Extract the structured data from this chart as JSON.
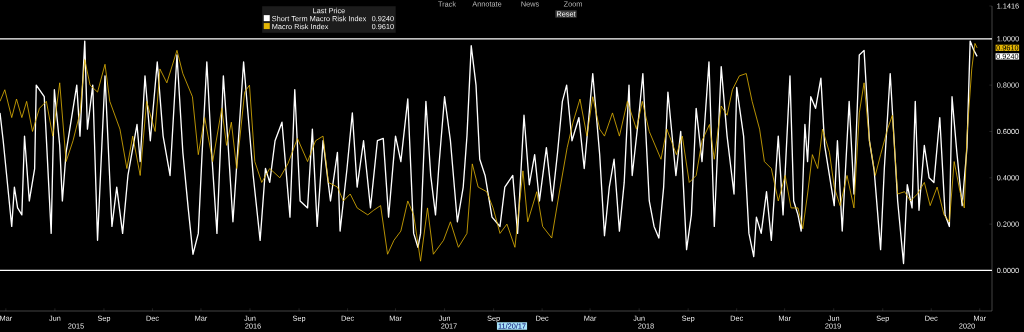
{
  "chart_data": {
    "type": "line",
    "legend_title": "Last Price",
    "legend": "top",
    "xlim": [
      "2015-02-18",
      "2020-03-24"
    ],
    "ylim": [
      -0.175,
      1.1416
    ],
    "xticks": [
      {
        "value": "2015-03-01",
        "label": "Mar"
      },
      {
        "value": "2015-06-01",
        "label": "Jun"
      },
      {
        "value": "2015-09-01",
        "label": "Sep"
      },
      {
        "value": "2015-12-01",
        "label": "Dec"
      },
      {
        "value": "2016-03-01",
        "label": "Mar"
      },
      {
        "value": "2016-06-01",
        "label": "Jun"
      },
      {
        "value": "2016-09-01",
        "label": "Sep"
      },
      {
        "value": "2016-12-01",
        "label": "Dec"
      },
      {
        "value": "2017-03-01",
        "label": "Mar"
      },
      {
        "value": "2017-06-01",
        "label": "Jun"
      },
      {
        "value": "2017-09-01",
        "label": "Sep"
      },
      {
        "value": "2017-12-01",
        "label": "Dec"
      },
      {
        "value": "2018-03-01",
        "label": "Mar"
      },
      {
        "value": "2018-06-01",
        "label": "Jun"
      },
      {
        "value": "2018-09-01",
        "label": "Sep"
      },
      {
        "value": "2018-12-01",
        "label": "Dec"
      },
      {
        "value": "2019-03-01",
        "label": "Mar"
      },
      {
        "value": "2019-06-01",
        "label": "Jun"
      },
      {
        "value": "2019-09-01",
        "label": "Sep"
      },
      {
        "value": "2019-12-01",
        "label": "Dec"
      },
      {
        "value": "2020-03-01",
        "label": "Mar"
      }
    ],
    "yticks": [
      {
        "value": 0,
        "label": "0.0000"
      },
      {
        "value": 0.2,
        "label": "0.2000"
      },
      {
        "value": 0.4,
        "label": "0.4000"
      },
      {
        "value": 0.6,
        "label": "0.6000"
      },
      {
        "value": 0.8,
        "label": "0.8000"
      },
      {
        "value": 1,
        "label": "1.0000"
      },
      {
        "value": 1.1416,
        "label": "1.1416"
      }
    ],
    "ref_lines": [
      {
        "axis": "y",
        "value": 1,
        "color": "#ffffff"
      },
      {
        "axis": "y",
        "value": 0,
        "color": "#ffffff"
      }
    ],
    "annotations": [
      "0.9240",
      "0.9610",
      "Track",
      "Annotate",
      "News",
      "Zoom",
      "Reset",
      "11/20/17",
      "2015",
      "2016",
      "2017",
      "2018",
      "2019",
      "2020"
    ],
    "series": [
      {
        "name": "Short Term Macro Risk Index",
        "color": "#ffffff",
        "x": [
          "2015-02-18",
          "2015-02-24",
          "2015-03-12",
          "2015-03-17",
          "2015-03-23",
          "2015-03-31",
          "2015-04-05",
          "2015-04-14",
          "2015-04-24",
          "2015-04-27",
          "2015-05-12",
          "2015-05-25",
          "2015-05-31",
          "2015-06-10",
          "2015-06-15",
          "2015-06-22",
          "2015-07-12",
          "2015-07-18",
          "2015-07-27",
          "2015-08-01",
          "2015-08-11",
          "2015-08-20",
          "2015-09-03",
          "2015-09-16",
          "2015-09-25",
          "2015-10-06",
          "2015-10-16",
          "2015-11-02",
          "2015-11-08",
          "2015-11-17",
          "2015-11-27",
          "2015-12-10",
          "2015-12-21",
          "2016-01-03",
          "2016-01-16",
          "2016-01-27",
          "2016-02-06",
          "2016-02-15",
          "2016-02-25",
          "2016-03-03",
          "2016-03-12",
          "2016-03-21",
          "2016-03-31",
          "2016-04-12",
          "2016-04-21",
          "2016-04-30",
          "2016-05-20",
          "2016-06-07",
          "2016-06-20",
          "2016-06-30",
          "2016-07-08",
          "2016-07-18",
          "2016-07-31",
          "2016-08-15",
          "2016-08-24",
          "2016-09-03",
          "2016-09-17",
          "2016-09-26",
          "2016-10-05",
          "2016-10-16",
          "2016-10-30",
          "2016-11-12",
          "2016-11-17",
          "2016-11-30",
          "2016-12-10",
          "2016-12-19",
          "2016-12-31",
          "2017-01-13",
          "2017-01-26",
          "2017-02-06",
          "2017-02-16",
          "2017-03-01",
          "2017-03-11",
          "2017-03-24",
          "2017-04-04",
          "2017-04-12",
          "2017-04-17",
          "2017-04-27",
          "2017-05-06",
          "2017-05-15",
          "2017-05-21",
          "2017-06-01",
          "2017-06-12",
          "2017-06-25",
          "2017-07-06",
          "2017-07-13",
          "2017-07-21",
          "2017-07-30",
          "2017-08-06",
          "2017-08-16",
          "2017-08-29",
          "2017-09-13",
          "2017-09-22",
          "2017-10-07",
          "2017-10-16",
          "2017-10-28",
          "2017-11-07",
          "2017-11-17",
          "2017-11-26",
          "2017-12-09",
          "2017-12-20",
          "2017-12-30",
          "2018-01-08",
          "2018-01-16",
          "2018-01-26",
          "2018-02-08",
          "2018-02-18",
          "2018-03-06",
          "2018-03-19",
          "2018-03-28",
          "2018-04-06",
          "2018-04-15",
          "2018-04-25",
          "2018-05-04",
          "2018-05-13",
          "2018-05-19",
          "2018-06-01",
          "2018-06-08",
          "2018-06-20",
          "2018-06-29",
          "2018-07-08",
          "2018-07-17",
          "2018-07-25",
          "2018-08-09",
          "2018-08-18",
          "2018-08-29",
          "2018-09-07",
          "2018-09-16",
          "2018-09-27",
          "2018-10-10",
          "2018-10-20",
          "2018-11-02",
          "2018-11-13",
          "2018-11-26",
          "2018-12-01",
          "2018-12-14",
          "2018-12-24",
          "2019-01-02",
          "2019-01-07",
          "2019-01-16",
          "2019-01-26",
          "2019-02-04",
          "2019-02-17",
          "2019-02-26",
          "2019-03-11",
          "2019-03-18",
          "2019-03-26",
          "2019-04-01",
          "2019-04-08",
          "2019-04-13",
          "2019-04-19",
          "2019-04-28",
          "2019-05-08",
          "2019-05-15",
          "2019-05-24",
          "2019-06-02",
          "2019-06-08",
          "2019-06-17",
          "2019-06-30",
          "2019-07-09",
          "2019-07-19",
          "2019-07-28",
          "2019-08-07",
          "2019-08-16",
          "2019-08-28",
          "2019-09-04",
          "2019-09-15",
          "2019-09-29",
          "2019-10-10",
          "2019-10-17",
          "2019-10-26",
          "2019-11-01",
          "2019-11-08",
          "2019-11-18",
          "2019-11-27",
          "2019-12-06",
          "2019-12-17",
          "2019-12-27",
          "2020-01-04",
          "2020-01-09",
          "2020-01-18",
          "2020-01-28",
          "2020-02-06",
          "2020-02-12",
          "2020-02-19",
          "2020-02-25"
        ],
        "values": [
          0.68,
          0.56,
          0.19,
          0.36,
          0.27,
          0.24,
          0.58,
          0.3,
          0.44,
          0.8,
          0.75,
          0.16,
          0.78,
          0.54,
          0.3,
          0.51,
          0.8,
          0.58,
          0.99,
          0.61,
          0.8,
          0.13,
          0.84,
          0.19,
          0.36,
          0.16,
          0.41,
          0.63,
          0.47,
          0.84,
          0.56,
          0.9,
          0.58,
          0.41,
          0.93,
          0.51,
          0.27,
          0.07,
          0.16,
          0.5,
          0.9,
          0.51,
          0.16,
          0.84,
          0.54,
          0.21,
          0.9,
          0.41,
          0.13,
          0.44,
          0.38,
          0.56,
          0.64,
          0.23,
          0.78,
          0.3,
          0.27,
          0.61,
          0.19,
          0.56,
          0.3,
          0.51,
          0.17,
          0.44,
          0.68,
          0.36,
          0.56,
          0.27,
          0.56,
          0.57,
          0.23,
          0.58,
          0.47,
          0.74,
          0.16,
          0.1,
          0.16,
          0.73,
          0.41,
          0.24,
          0.44,
          0.75,
          0.56,
          0.21,
          0.36,
          0.58,
          0.97,
          0.8,
          0.48,
          0.41,
          0.23,
          0.19,
          0.36,
          0.41,
          0.16,
          0.67,
          0.37,
          0.5,
          0.3,
          0.53,
          0.3,
          0.51,
          0.73,
          0.8,
          0.56,
          0.66,
          0.44,
          0.85,
          0.5,
          0.15,
          0.36,
          0.48,
          0.17,
          0.38,
          0.8,
          0.41,
          0.68,
          0.85,
          0.3,
          0.19,
          0.14,
          0.36,
          0.77,
          0.41,
          0.6,
          0.09,
          0.24,
          0.7,
          0.47,
          0.9,
          0.19,
          0.88,
          0.58,
          0.33,
          0.79,
          0.58,
          0.16,
          0.06,
          0.23,
          0.16,
          0.34,
          0.13,
          0.58,
          0.24,
          0.84,
          0.3,
          0.24,
          0.17,
          0.63,
          0.47,
          0.75,
          0.7,
          0.83,
          0.54,
          0.41,
          0.28,
          0.56,
          0.17,
          0.73,
          0.33,
          0.93,
          0.95,
          0.56,
          0.43,
          0.09,
          0.44,
          0.85,
          0.3,
          0.03,
          0.37,
          0.27,
          0.73,
          0.26,
          0.54,
          0.4,
          0.38,
          0.66,
          0.24,
          0.19,
          0.75,
          0.51,
          0.28,
          0.53,
          0.99,
          0.95,
          0.924
        ]
      },
      {
        "name": "Macro Risk Index",
        "color": "#e3b505",
        "x": [
          "2015-02-18",
          "2015-02-27",
          "2015-03-12",
          "2015-03-21",
          "2015-03-31",
          "2015-04-09",
          "2015-04-20",
          "2015-05-03",
          "2015-05-16",
          "2015-05-28",
          "2015-06-10",
          "2015-06-22",
          "2015-07-05",
          "2015-07-18",
          "2015-07-27",
          "2015-08-06",
          "2015-08-20",
          "2015-09-03",
          "2015-09-12",
          "2015-10-01",
          "2015-10-14",
          "2015-10-25",
          "2015-11-08",
          "2015-11-20",
          "2015-12-06",
          "2015-12-15",
          "2015-12-28",
          "2016-01-16",
          "2016-01-27",
          "2016-02-14",
          "2016-02-25",
          "2016-03-08",
          "2016-03-23",
          "2016-04-09",
          "2016-04-18",
          "2016-04-27",
          "2016-05-07",
          "2016-05-22",
          "2016-05-31",
          "2016-06-10",
          "2016-06-23",
          "2016-07-08",
          "2016-07-27",
          "2016-08-11",
          "2016-08-29",
          "2016-09-17",
          "2016-10-02",
          "2016-10-16",
          "2016-10-26",
          "2016-11-12",
          "2016-11-23",
          "2016-12-06",
          "2016-12-19",
          "2017-01-08",
          "2017-01-19",
          "2017-02-01",
          "2017-02-14",
          "2017-02-26",
          "2017-03-11",
          "2017-03-24",
          "2017-04-04",
          "2017-04-17",
          "2017-04-30",
          "2017-05-11",
          "2017-05-30",
          "2017-06-12",
          "2017-06-27",
          "2017-07-13",
          "2017-07-23",
          "2017-08-03",
          "2017-08-19",
          "2017-08-31",
          "2017-09-13",
          "2017-09-26",
          "2017-10-11",
          "2017-10-26",
          "2017-11-04",
          "2017-11-21",
          "2017-12-02",
          "2017-12-19",
          "2018-01-04",
          "2018-01-17",
          "2018-01-28",
          "2018-02-10",
          "2018-02-23",
          "2018-03-06",
          "2018-03-19",
          "2018-03-28",
          "2018-04-12",
          "2018-04-25",
          "2018-05-10",
          "2018-05-27",
          "2018-06-07",
          "2018-06-20",
          "2018-07-12",
          "2018-07-23",
          "2018-08-10",
          "2018-08-21",
          "2018-09-03",
          "2018-09-16",
          "2018-09-27",
          "2018-10-11",
          "2018-10-20",
          "2018-11-02",
          "2018-11-13",
          "2018-11-23",
          "2018-12-06",
          "2018-12-19",
          "2018-12-30",
          "2019-01-13",
          "2019-01-22",
          "2019-02-04",
          "2019-02-17",
          "2019-03-02",
          "2019-03-13",
          "2019-03-26",
          "2019-04-04",
          "2019-04-13",
          "2019-04-22",
          "2019-05-02",
          "2019-05-11",
          "2019-05-24",
          "2019-06-02",
          "2019-06-13",
          "2019-06-26",
          "2019-07-09",
          "2019-07-19",
          "2019-07-28",
          "2019-08-07",
          "2019-08-18",
          "2019-08-28",
          "2019-09-10",
          "2019-09-19",
          "2019-09-29",
          "2019-10-12",
          "2019-10-23",
          "2019-11-05",
          "2019-11-18",
          "2019-11-29",
          "2019-12-12",
          "2019-12-25",
          "2020-01-04",
          "2020-01-13",
          "2020-01-24",
          "2020-02-01",
          "2020-02-06",
          "2020-02-15",
          "2020-02-21",
          "2020-02-25"
        ],
        "values": [
          0.73,
          0.78,
          0.66,
          0.74,
          0.66,
          0.73,
          0.6,
          0.7,
          0.73,
          0.58,
          0.81,
          0.47,
          0.56,
          0.68,
          0.91,
          0.8,
          0.77,
          0.89,
          0.73,
          0.61,
          0.44,
          0.58,
          0.41,
          0.73,
          0.6,
          0.87,
          0.81,
          0.95,
          0.85,
          0.75,
          0.5,
          0.66,
          0.47,
          0.7,
          0.54,
          0.64,
          0.44,
          0.77,
          0.8,
          0.47,
          0.38,
          0.44,
          0.4,
          0.46,
          0.57,
          0.47,
          0.56,
          0.58,
          0.38,
          0.36,
          0.3,
          0.33,
          0.27,
          0.24,
          0.26,
          0.28,
          0.07,
          0.13,
          0.17,
          0.3,
          0.24,
          0.04,
          0.27,
          0.07,
          0.13,
          0.21,
          0.1,
          0.16,
          0.46,
          0.36,
          0.34,
          0.27,
          0.16,
          0.2,
          0.1,
          0.43,
          0.21,
          0.34,
          0.19,
          0.14,
          0.36,
          0.53,
          0.64,
          0.74,
          0.58,
          0.75,
          0.61,
          0.58,
          0.68,
          0.58,
          0.73,
          0.61,
          0.73,
          0.6,
          0.48,
          0.61,
          0.5,
          0.58,
          0.38,
          0.41,
          0.56,
          0.63,
          0.48,
          0.71,
          0.67,
          0.78,
          0.84,
          0.85,
          0.73,
          0.61,
          0.47,
          0.44,
          0.3,
          0.41,
          0.27,
          0.27,
          0.18,
          0.33,
          0.5,
          0.44,
          0.61,
          0.51,
          0.36,
          0.28,
          0.41,
          0.27,
          0.68,
          0.81,
          0.56,
          0.41,
          0.5,
          0.61,
          0.67,
          0.33,
          0.34,
          0.3,
          0.33,
          0.38,
          0.28,
          0.36,
          0.24,
          0.21,
          0.47,
          0.34,
          0.27,
          0.58,
          0.87,
          0.98,
          0.961
        ]
      }
    ]
  }
}
